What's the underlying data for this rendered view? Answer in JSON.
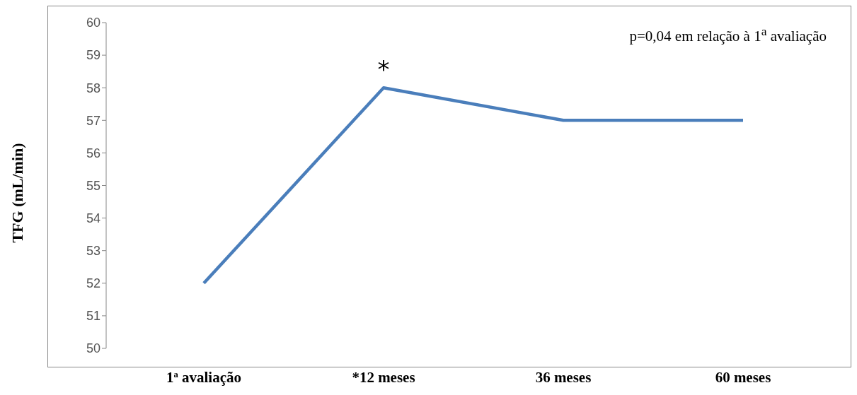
{
  "chart_data": {
    "type": "line",
    "ylabel": "TFG (mL/min)",
    "categories": [
      "1$^{a}$ avaliação",
      "*12 meses",
      "36 meses",
      "60 meses"
    ],
    "series": [
      {
        "color": "#4a7ebb",
        "values": [
          52,
          58,
          57,
          57
        ]
      }
    ],
    "ylim": [
      50,
      60
    ],
    "yticks": [
      50,
      51,
      52,
      53,
      54,
      55,
      56,
      57,
      58,
      59,
      60
    ],
    "annotations": [
      "p=0,04 em relação à 1$^{a}$ avaliação",
      {
        "text": "*",
        "x": "*12 meses",
        "y": 58
      }
    ],
    "grid": false,
    "legend": false
  }
}
